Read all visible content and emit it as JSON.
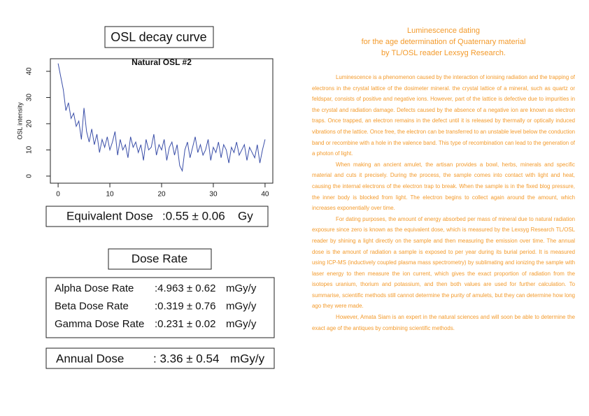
{
  "osl_panel": {
    "title": "OSL decay curve",
    "equivalent_dose": {
      "label": "Equivalent Dose",
      "value": ":0.55 ± 0.06",
      "unit": "Gy"
    }
  },
  "chart_data": {
    "type": "line",
    "title": "Natural OSL #2",
    "y_label": "OSL intensity",
    "color": "#3a4ea8",
    "x": [
      0,
      0.5,
      1,
      1.5,
      2,
      2.5,
      3,
      3.5,
      4,
      4.5,
      5,
      5.5,
      6,
      6.5,
      7,
      7.5,
      8,
      8.5,
      9,
      9.5,
      10,
      10.5,
      11,
      11.5,
      12,
      12.5,
      13,
      13.5,
      14,
      14.5,
      15,
      15.5,
      16,
      16.5,
      17,
      17.5,
      18,
      18.5,
      19,
      19.5,
      20,
      20.5,
      21,
      21.5,
      22,
      22.5,
      23,
      23.5,
      24,
      24.5,
      25,
      25.5,
      26,
      26.5,
      27,
      27.5,
      28,
      28.5,
      29,
      29.5,
      30,
      30.5,
      31,
      31.5,
      32,
      32.5,
      33,
      33.5,
      34,
      34.5,
      35,
      35.5,
      36,
      36.5,
      37,
      37.5,
      38,
      38.5,
      39,
      39.5,
      40
    ],
    "values": [
      43,
      38,
      33,
      25,
      28,
      22,
      24,
      19,
      21,
      14,
      26,
      17,
      13,
      18,
      12,
      16,
      9,
      14,
      11,
      15,
      10,
      13,
      17,
      8,
      14,
      10,
      12,
      7,
      15,
      11,
      13,
      9,
      12,
      6,
      14,
      10,
      11,
      16,
      8,
      12,
      10,
      14,
      6,
      11,
      13,
      8,
      12,
      4,
      2,
      10,
      13,
      7,
      11,
      15,
      9,
      12,
      8,
      10,
      14,
      6,
      11,
      9,
      13,
      7,
      12,
      10,
      5,
      11,
      9,
      13,
      8,
      10,
      12,
      6,
      11,
      9,
      7,
      12,
      5,
      10,
      14
    ],
    "xlim": [
      -1.5,
      41.5
    ],
    "ylim": [
      -2.7,
      44.8
    ],
    "xticks": [
      0,
      10,
      20,
      30,
      40
    ],
    "yticks": [
      0,
      10,
      20,
      30,
      40
    ]
  },
  "dose_rate": {
    "title": "Dose Rate",
    "rows": [
      {
        "label": "Alpha Dose Rate",
        "value": ":4.963 ± 0.62",
        "unit": "mGy/y"
      },
      {
        "label": "Beta Dose Rate",
        "value": ":0.319 ± 0.76",
        "unit": "mGy/y"
      },
      {
        "label": "Gamma Dose Rate",
        "value": ":0.231 ± 0.02",
        "unit": "mGy/y"
      }
    ]
  },
  "annual_dose": {
    "label": "Annual Dose",
    "value": ": 3.36 ± 0.54",
    "unit": "mGy/y"
  },
  "article": {
    "title_lines": [
      "Luminescence dating",
      "for the age determination of Quaternary material",
      "by TL/OSL reader Lexsyg Research."
    ],
    "paragraphs": [
      "Luminescence is a phenomenon caused by the interaction of ionising radiation and the trapping of electrons in the crystal lattice of the dosimeter mineral. the crystal lattice of a mineral, such as quartz or feldspar, consists of positive and negative ions. However, part of the lattice is defective due to impurities in the crystal and radiation damage. Defects caused by the absence of a negative ion are known as electron traps. Once trapped, an electron remains in the defect until it is released by thermally or optically induced vibrations of the lattice. Once free, the electron can be transferred to an unstable level below the conduction band or recombine with a hole in the valence band. This type of recombination can lead to the generation of a photon of light.",
      "When making an ancient amulet, the artisan provides a bowl, herbs, minerals and specific material and cuts it precisely. During the process, the sample comes into contact with light and heat, causing the internal electrons of the electron trap to break. When the sample is in the fixed blog pressure, the inner body is blocked from light. The electron begins to collect again around the amount, which increases exponentially over time.",
      "For dating purposes, the amount of energy absorbed per mass of mineral due to natural radiation exposure since zero is known as the equivalent dose, which is measured by the Lexsyg Research TL/OSL reader by shining a light directly on the sample and then measuring the emission over time. The annual dose is the amount of radiation a sample is exposed to per year during its burial period. It is measured using ICP-MS (inductively coupled plasma mass spectrometry) by sublimating and ionizing the sample with laser energy to then measure the ion current, which gives the exact proportion of radiation from the isotopes uranium, thorium and potassium, and then both values are used for further calculation. To summarise, scientific methods still cannot determine the purity of amulets, but they can determine how long ago they were made.",
      "However, Amata Siam is an expert in the natural sciences and will soon be able to determine the exact age of the antiques by combining scientific methods."
    ]
  }
}
